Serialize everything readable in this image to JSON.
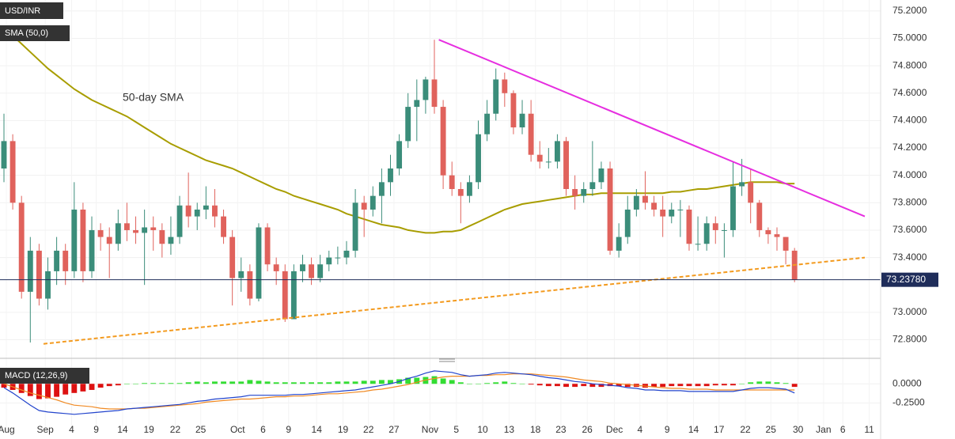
{
  "chart_data": {
    "type": "candlestick",
    "title": "USD/INR",
    "up_color": "#3b8d7a",
    "down_color": "#e0625c",
    "grid": true,
    "xlim": [
      -0.45,
      99.8
    ],
    "ylim": [
      72.67,
      75.28
    ],
    "xticks": [
      {
        "value": 0.27,
        "label": "Aug"
      },
      {
        "value": 4.7,
        "label": "Sep"
      },
      {
        "value": 7.7,
        "label": "4"
      },
      {
        "value": 10.5,
        "label": "9"
      },
      {
        "value": 13.5,
        "label": "14"
      },
      {
        "value": 16.5,
        "label": "19"
      },
      {
        "value": 19.5,
        "label": "22"
      },
      {
        "value": 22.4,
        "label": "25"
      },
      {
        "value": 26.6,
        "label": "Oct"
      },
      {
        "value": 29.5,
        "label": "6"
      },
      {
        "value": 32.4,
        "label": "9"
      },
      {
        "value": 35.6,
        "label": "14"
      },
      {
        "value": 38.6,
        "label": "19"
      },
      {
        "value": 41.5,
        "label": "22"
      },
      {
        "value": 44.4,
        "label": "27"
      },
      {
        "value": 48.5,
        "label": "Nov"
      },
      {
        "value": 51.5,
        "label": "5"
      },
      {
        "value": 54.5,
        "label": "10"
      },
      {
        "value": 57.5,
        "label": "13"
      },
      {
        "value": 60.5,
        "label": "18"
      },
      {
        "value": 63.4,
        "label": "23"
      },
      {
        "value": 66.4,
        "label": "26"
      },
      {
        "value": 69.5,
        "label": "Dec"
      },
      {
        "value": 72.4,
        "label": "4"
      },
      {
        "value": 75.5,
        "label": "9"
      },
      {
        "value": 78.5,
        "label": "14"
      },
      {
        "value": 81.4,
        "label": "17"
      },
      {
        "value": 84.4,
        "label": "22"
      },
      {
        "value": 87.3,
        "label": "25"
      },
      {
        "value": 90.4,
        "label": "30"
      },
      {
        "value": 93.3,
        "label": "Jan"
      },
      {
        "value": 95.5,
        "label": "6"
      },
      {
        "value": 98.5,
        "label": "11"
      }
    ],
    "yticks": [
      {
        "value": 72.8,
        "label": "72.8000"
      },
      {
        "value": 73.0,
        "label": "73.0000"
      },
      {
        "value": 73.4,
        "label": "73.4000"
      },
      {
        "value": 73.6,
        "label": "73.6000"
      },
      {
        "value": 73.8,
        "label": "73.8000"
      },
      {
        "value": 74.0,
        "label": "74.0000"
      },
      {
        "value": 74.2,
        "label": "74.2000"
      },
      {
        "value": 74.4,
        "label": "74.4000"
      },
      {
        "value": 74.6,
        "label": "74.6000"
      },
      {
        "value": 74.8,
        "label": "74.8000"
      },
      {
        "value": 75.0,
        "label": "75.0000"
      },
      {
        "value": 75.2,
        "label": "75.2000"
      }
    ],
    "candles": [
      [
        74.05,
        74.45,
        73.95,
        74.25
      ],
      [
        74.25,
        74.3,
        73.75,
        73.8
      ],
      [
        73.8,
        73.85,
        73.1,
        73.15
      ],
      [
        73.15,
        73.55,
        72.78,
        73.45
      ],
      [
        73.45,
        73.5,
        73.05,
        73.1
      ],
      [
        73.1,
        73.4,
        73.02,
        73.3
      ],
      [
        73.3,
        73.55,
        73.2,
        73.45
      ],
      [
        73.45,
        73.5,
        73.2,
        73.3
      ],
      [
        73.3,
        73.95,
        73.25,
        73.75
      ],
      [
        73.75,
        73.8,
        73.22,
        73.3
      ],
      [
        73.3,
        73.7,
        73.25,
        73.6
      ],
      [
        73.6,
        73.65,
        73.45,
        73.55
      ],
      [
        73.55,
        73.62,
        73.25,
        73.5
      ],
      [
        73.5,
        73.75,
        73.45,
        73.65
      ],
      [
        73.65,
        73.8,
        73.52,
        73.6
      ],
      [
        73.6,
        73.7,
        73.5,
        73.58
      ],
      [
        73.58,
        73.75,
        73.2,
        73.62
      ],
      [
        73.62,
        73.7,
        73.45,
        73.6
      ],
      [
        73.6,
        73.65,
        73.4,
        73.5
      ],
      [
        73.5,
        73.7,
        73.42,
        73.55
      ],
      [
        73.55,
        73.85,
        73.5,
        73.78
      ],
      [
        73.78,
        74.02,
        73.62,
        73.7
      ],
      [
        73.7,
        73.8,
        73.6,
        73.75
      ],
      [
        73.75,
        73.92,
        73.68,
        73.78
      ],
      [
        73.78,
        73.9,
        73.62,
        73.7
      ],
      [
        73.7,
        73.75,
        73.5,
        73.55
      ],
      [
        73.55,
        73.6,
        73.05,
        73.25
      ],
      [
        73.25,
        73.4,
        73.15,
        73.3
      ],
      [
        73.3,
        73.35,
        73.05,
        73.1
      ],
      [
        73.1,
        73.65,
        73.08,
        73.62
      ],
      [
        73.62,
        73.65,
        73.3,
        73.35
      ],
      [
        73.35,
        73.4,
        73.2,
        73.3
      ],
      [
        73.3,
        73.35,
        72.93,
        72.95
      ],
      [
        72.95,
        73.35,
        72.95,
        73.3
      ],
      [
        73.3,
        73.42,
        73.22,
        73.35
      ],
      [
        73.35,
        73.4,
        73.2,
        73.25
      ],
      [
        73.25,
        73.42,
        73.22,
        73.35
      ],
      [
        73.35,
        73.45,
        73.3,
        73.4
      ],
      [
        73.4,
        73.48,
        73.35,
        73.4
      ],
      [
        73.4,
        73.52,
        73.35,
        73.45
      ],
      [
        73.45,
        73.9,
        73.4,
        73.8
      ],
      [
        73.8,
        73.85,
        73.55,
        73.75
      ],
      [
        73.75,
        73.92,
        73.7,
        73.85
      ],
      [
        73.85,
        74.05,
        73.65,
        73.95
      ],
      [
        73.95,
        74.15,
        73.85,
        74.05
      ],
      [
        74.05,
        74.3,
        74.0,
        74.25
      ],
      [
        74.25,
        74.6,
        74.2,
        74.5
      ],
      [
        74.5,
        74.7,
        74.25,
        74.55
      ],
      [
        74.55,
        74.72,
        74.45,
        74.7
      ],
      [
        74.7,
        74.99,
        74.45,
        74.5
      ],
      [
        74.5,
        74.55,
        73.9,
        74.0
      ],
      [
        74.0,
        74.1,
        73.85,
        73.9
      ],
      [
        73.9,
        73.95,
        73.65,
        73.85
      ],
      [
        73.85,
        74.0,
        73.8,
        73.95
      ],
      [
        73.95,
        74.4,
        73.9,
        74.3
      ],
      [
        74.3,
        74.55,
        74.25,
        74.45
      ],
      [
        74.45,
        74.78,
        74.4,
        74.7
      ],
      [
        74.7,
        74.75,
        74.5,
        74.6
      ],
      [
        74.6,
        74.62,
        74.3,
        74.35
      ],
      [
        74.35,
        74.55,
        74.3,
        74.45
      ],
      [
        74.45,
        74.55,
        74.1,
        74.15
      ],
      [
        74.15,
        74.25,
        74.05,
        74.1
      ],
      [
        74.1,
        74.2,
        74.05,
        74.1
      ],
      [
        74.1,
        74.3,
        74.05,
        74.25
      ],
      [
        74.25,
        74.28,
        73.85,
        73.9
      ],
      [
        73.9,
        74.0,
        73.75,
        73.85
      ],
      [
        73.85,
        73.95,
        73.8,
        73.9
      ],
      [
        73.9,
        74.25,
        73.85,
        73.95
      ],
      [
        73.95,
        74.1,
        73.9,
        74.05
      ],
      [
        74.05,
        74.1,
        73.42,
        73.45
      ],
      [
        73.45,
        73.65,
        73.4,
        73.55
      ],
      [
        73.55,
        73.85,
        73.5,
        73.75
      ],
      [
        73.75,
        73.9,
        73.7,
        73.85
      ],
      [
        73.85,
        74.03,
        73.75,
        73.8
      ],
      [
        73.8,
        73.85,
        73.7,
        73.75
      ],
      [
        73.75,
        73.85,
        73.55,
        73.7
      ],
      [
        73.7,
        73.8,
        73.65,
        73.75
      ],
      [
        73.75,
        73.82,
        73.55,
        73.75
      ],
      [
        73.75,
        73.78,
        73.45,
        73.5
      ],
      [
        73.5,
        73.7,
        73.45,
        73.5
      ],
      [
        73.5,
        73.7,
        73.45,
        73.65
      ],
      [
        73.65,
        73.7,
        73.5,
        73.6
      ],
      [
        73.6,
        73.65,
        73.4,
        73.6
      ],
      [
        73.6,
        74.1,
        73.55,
        73.92
      ],
      [
        73.92,
        74.12,
        73.85,
        73.95
      ],
      [
        73.95,
        74.05,
        73.65,
        73.8
      ],
      [
        73.8,
        73.82,
        73.55,
        73.6
      ],
      [
        73.6,
        73.62,
        73.5,
        73.57
      ],
      [
        73.57,
        73.62,
        73.45,
        73.55
      ],
      [
        73.55,
        73.55,
        73.35,
        73.45
      ],
      [
        73.45,
        73.47,
        73.22,
        73.2378
      ]
    ],
    "sma": {
      "label": "SMA (50,0)",
      "annotation": "50-day SMA",
      "color": "#a89d00",
      "values": [
        75.08,
        75.02,
        74.96,
        74.9,
        74.84,
        74.78,
        74.73,
        74.68,
        74.63,
        74.59,
        74.55,
        74.52,
        74.49,
        74.46,
        74.43,
        74.39,
        74.35,
        74.31,
        74.27,
        74.23,
        74.2,
        74.17,
        74.14,
        74.11,
        74.09,
        74.07,
        74.05,
        74.02,
        73.99,
        73.96,
        73.93,
        73.9,
        73.88,
        73.85,
        73.83,
        73.81,
        73.79,
        73.77,
        73.75,
        73.72,
        73.7,
        73.68,
        73.66,
        73.64,
        73.63,
        73.62,
        73.6,
        73.59,
        73.58,
        73.58,
        73.59,
        73.59,
        73.6,
        73.63,
        73.66,
        73.69,
        73.72,
        73.75,
        73.77,
        73.79,
        73.8,
        73.81,
        73.82,
        73.83,
        73.84,
        73.85,
        73.86,
        73.86,
        73.87,
        73.87,
        73.87,
        73.87,
        73.87,
        73.87,
        73.87,
        73.87,
        73.88,
        73.88,
        73.89,
        73.9,
        73.9,
        73.91,
        73.92,
        73.93,
        73.94,
        73.95,
        73.95,
        73.95,
        73.95,
        73.94,
        73.94
      ]
    },
    "trendlines": [
      {
        "color": "#e62ee0",
        "dashed": false,
        "x": [
          49.5,
          98
        ],
        "y": [
          74.99,
          73.7
        ]
      },
      {
        "color": "#f39a1e",
        "dashed": true,
        "x": [
          4.5,
          98
        ],
        "y": [
          72.77,
          73.4
        ]
      }
    ],
    "last_price": 73.2378,
    "last_price_label": "73.23780",
    "macd": {
      "label": "MACD (12,26,9)",
      "ylim": [
        -0.62,
        0.21
      ],
      "yticks": [
        {
          "value": -0.25,
          "label": "-0.2500"
        },
        {
          "value": 0,
          "label": "0.0000"
        }
      ],
      "up_color": "#33dd33",
      "down_color": "#dd1111",
      "macd": {
        "color": "#2244cc",
        "values": [
          -0.05,
          -0.12,
          -0.2,
          -0.28,
          -0.35,
          -0.37,
          -0.38,
          -0.39,
          -0.4,
          -0.39,
          -0.38,
          -0.37,
          -0.36,
          -0.35,
          -0.33,
          -0.32,
          -0.31,
          -0.3,
          -0.29,
          -0.28,
          -0.27,
          -0.25,
          -0.23,
          -0.22,
          -0.2,
          -0.19,
          -0.18,
          -0.17,
          -0.15,
          -0.15,
          -0.15,
          -0.15,
          -0.15,
          -0.14,
          -0.14,
          -0.13,
          -0.12,
          -0.11,
          -0.1,
          -0.09,
          -0.08,
          -0.06,
          -0.04,
          -0.02,
          0.0,
          0.03,
          0.07,
          0.1,
          0.14,
          0.17,
          0.16,
          0.15,
          0.12,
          0.1,
          0.11,
          0.12,
          0.14,
          0.15,
          0.14,
          0.13,
          0.12,
          0.1,
          0.08,
          0.07,
          0.05,
          0.03,
          0.02,
          0.0,
          -0.01,
          -0.02,
          -0.03,
          -0.05,
          -0.06,
          -0.08,
          -0.08,
          -0.09,
          -0.09,
          -0.09,
          -0.1,
          -0.1,
          -0.1,
          -0.1,
          -0.1,
          -0.1,
          -0.08,
          -0.06,
          -0.05,
          -0.05,
          -0.06,
          -0.07,
          -0.12
        ]
      },
      "signal": {
        "color": "#f08a24",
        "values": [
          0.0,
          -0.04,
          -0.08,
          -0.12,
          -0.15,
          -0.18,
          -0.21,
          -0.25,
          -0.28,
          -0.29,
          -0.3,
          -0.32,
          -0.33,
          -0.33,
          -0.33,
          -0.32,
          -0.32,
          -0.31,
          -0.3,
          -0.29,
          -0.28,
          -0.27,
          -0.26,
          -0.24,
          -0.23,
          -0.22,
          -0.21,
          -0.2,
          -0.2,
          -0.19,
          -0.18,
          -0.17,
          -0.17,
          -0.16,
          -0.16,
          -0.15,
          -0.14,
          -0.13,
          -0.13,
          -0.12,
          -0.11,
          -0.1,
          -0.08,
          -0.07,
          -0.05,
          -0.03,
          -0.01,
          0.02,
          0.05,
          0.07,
          0.09,
          0.1,
          0.1,
          0.1,
          0.11,
          0.11,
          0.12,
          0.12,
          0.13,
          0.13,
          0.13,
          0.12,
          0.11,
          0.1,
          0.09,
          0.07,
          0.05,
          0.04,
          0.03,
          0.01,
          0.0,
          -0.01,
          -0.02,
          -0.03,
          -0.04,
          -0.05,
          -0.06,
          -0.06,
          -0.07,
          -0.07,
          -0.07,
          -0.08,
          -0.08,
          -0.08,
          -0.08,
          -0.08,
          -0.08,
          -0.08,
          -0.08,
          -0.08,
          -0.08
        ]
      },
      "histogram": [
        -0.05,
        -0.08,
        -0.12,
        -0.16,
        -0.2,
        -0.19,
        -0.17,
        -0.14,
        -0.12,
        -0.1,
        -0.08,
        -0.05,
        -0.03,
        -0.02,
        0.0,
        0.0,
        0.01,
        0.01,
        0.01,
        0.01,
        0.01,
        0.02,
        0.03,
        0.02,
        0.03,
        0.03,
        0.03,
        0.03,
        0.05,
        0.04,
        0.03,
        0.02,
        0.02,
        0.02,
        0.02,
        0.02,
        0.02,
        0.02,
        0.03,
        0.03,
        0.03,
        0.04,
        0.04,
        0.05,
        0.05,
        0.06,
        0.08,
        0.08,
        0.09,
        0.1,
        0.07,
        0.05,
        0.02,
        0.0,
        0.0,
        0.01,
        0.02,
        0.03,
        0.01,
        0.0,
        -0.01,
        -0.02,
        -0.03,
        -0.03,
        -0.04,
        -0.04,
        -0.03,
        -0.04,
        -0.04,
        -0.03,
        -0.03,
        -0.04,
        -0.04,
        -0.05,
        -0.04,
        -0.04,
        -0.03,
        -0.03,
        -0.03,
        -0.03,
        -0.03,
        -0.02,
        -0.02,
        -0.02,
        0.0,
        0.02,
        0.03,
        0.03,
        0.02,
        0.01,
        -0.04
      ]
    }
  }
}
